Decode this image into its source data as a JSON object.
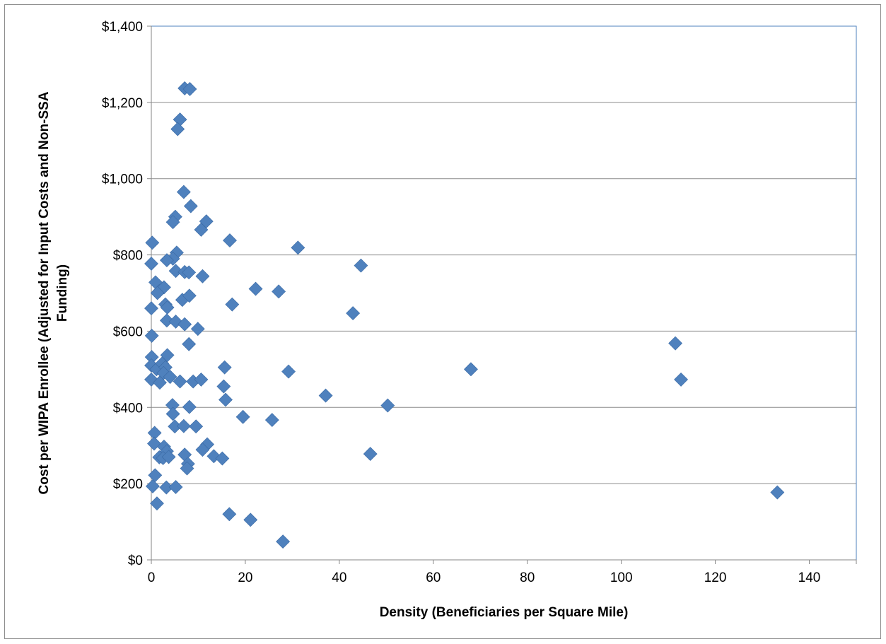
{
  "chart_data": {
    "type": "scatter",
    "xlabel": "Density (Beneficiaries per Square Mile)",
    "ylabel": "Cost per WIPA Enrollee  (Adjusted for Input Costs and Non-SSA Funding)",
    "ylabel_lines": [
      "Cost per WIPA Enrollee  (Adjusted for Input Costs and Non-SSA",
      "Funding)"
    ],
    "xlim": [
      0,
      150
    ],
    "ylim": [
      0,
      1400
    ],
    "x_ticks": [
      0,
      20,
      40,
      60,
      80,
      100,
      120,
      140
    ],
    "x_tick_labels": [
      "0",
      "20",
      "40",
      "60",
      "80",
      "100",
      "120",
      "140"
    ],
    "y_ticks": [
      0,
      200,
      400,
      600,
      800,
      1000,
      1200,
      1400
    ],
    "y_tick_labels": [
      "$0",
      "$200",
      "$400",
      "$600",
      "$800",
      "$1,000",
      "$1,200",
      "$1,400"
    ],
    "grid": "horizontal",
    "marker_color": "#4f81bd",
    "series": [
      {
        "points": [
          [
            7.1,
            1237
          ],
          [
            8.2,
            1235
          ],
          [
            6.1,
            1155
          ],
          [
            5.6,
            1130
          ],
          [
            6.9,
            965
          ],
          [
            8.4,
            928
          ],
          [
            5.1,
            900
          ],
          [
            4.6,
            886
          ],
          [
            11.7,
            888
          ],
          [
            10.6,
            866
          ],
          [
            0.2,
            832
          ],
          [
            16.7,
            838
          ],
          [
            31.2,
            819
          ],
          [
            44.6,
            772
          ],
          [
            5.4,
            806
          ],
          [
            4.6,
            790
          ],
          [
            3.3,
            786
          ],
          [
            0.0,
            777
          ],
          [
            5.2,
            758
          ],
          [
            7.1,
            755
          ],
          [
            8.0,
            754
          ],
          [
            10.9,
            744
          ],
          [
            0.9,
            728
          ],
          [
            1.7,
            705
          ],
          [
            2.7,
            715
          ],
          [
            1.3,
            700
          ],
          [
            22.2,
            711
          ],
          [
            27.1,
            704
          ],
          [
            6.6,
            682
          ],
          [
            8.1,
            693
          ],
          [
            3.0,
            670
          ],
          [
            3.4,
            662
          ],
          [
            17.2,
            670
          ],
          [
            0.0,
            660
          ],
          [
            42.9,
            647
          ],
          [
            3.3,
            628
          ],
          [
            5.2,
            625
          ],
          [
            7.1,
            618
          ],
          [
            9.9,
            606
          ],
          [
            0.1,
            588
          ],
          [
            111.5,
            568
          ],
          [
            8.0,
            566
          ],
          [
            3.4,
            537
          ],
          [
            0.1,
            532
          ],
          [
            0.0,
            510
          ],
          [
            1.1,
            500
          ],
          [
            2.3,
            515
          ],
          [
            3.0,
            505
          ],
          [
            2.6,
            490
          ],
          [
            15.6,
            505
          ],
          [
            68.0,
            500
          ],
          [
            29.2,
            494
          ],
          [
            4.0,
            480
          ],
          [
            0.0,
            473
          ],
          [
            1.8,
            465
          ],
          [
            6.1,
            468
          ],
          [
            8.9,
            468
          ],
          [
            10.6,
            473
          ],
          [
            112.7,
            473
          ],
          [
            15.4,
            455
          ],
          [
            37.1,
            431
          ],
          [
            15.8,
            420
          ],
          [
            4.5,
            406
          ],
          [
            8.1,
            401
          ],
          [
            50.3,
            405
          ],
          [
            19.5,
            375
          ],
          [
            25.7,
            367
          ],
          [
            4.6,
            383
          ],
          [
            5.0,
            350
          ],
          [
            6.9,
            351
          ],
          [
            9.5,
            350
          ],
          [
            0.7,
            333
          ],
          [
            0.6,
            305
          ],
          [
            11.9,
            303
          ],
          [
            10.9,
            289
          ],
          [
            2.7,
            297
          ],
          [
            3.3,
            285
          ],
          [
            46.6,
            278
          ],
          [
            13.3,
            272
          ],
          [
            7.1,
            276
          ],
          [
            15.1,
            266
          ],
          [
            1.7,
            269
          ],
          [
            2.5,
            267
          ],
          [
            3.7,
            270
          ],
          [
            7.8,
            252
          ],
          [
            7.6,
            240
          ],
          [
            0.8,
            222
          ],
          [
            0.3,
            193
          ],
          [
            3.2,
            190
          ],
          [
            5.2,
            191
          ],
          [
            133.2,
            177
          ],
          [
            1.2,
            148
          ],
          [
            16.6,
            120
          ],
          [
            21.1,
            105
          ],
          [
            28.0,
            48
          ]
        ]
      }
    ]
  }
}
